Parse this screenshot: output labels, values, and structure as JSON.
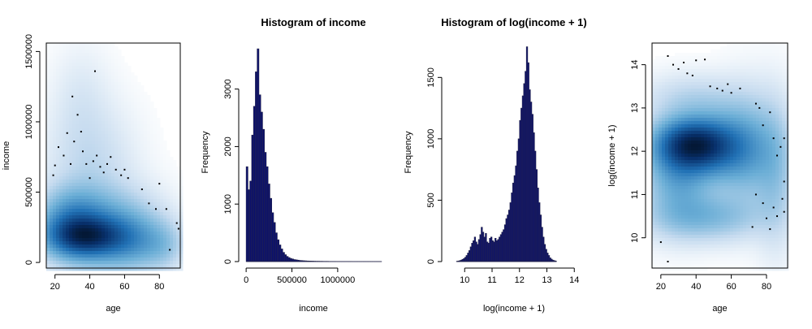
{
  "colors": {
    "density_scale": [
      "#ffffff",
      "#c6dbef",
      "#6baed6",
      "#2171b5",
      "#08306b",
      "#000000"
    ],
    "bar_fill": "#0a0f6e",
    "bar_border": "#26264a",
    "axis": "#000000"
  },
  "chart_data": [
    {
      "type": "heatmap",
      "subtype": "smoothScatter",
      "title": "",
      "xlabel": "age",
      "ylabel": "income",
      "xlim": [
        15,
        92
      ],
      "ylim": [
        -40000,
        1560000
      ],
      "x_ticks": [
        20,
        40,
        60,
        80
      ],
      "x_tick_labels": [
        "20",
        "40",
        "60",
        "80"
      ],
      "y_ticks": [
        0,
        500000,
        1000000,
        1500000
      ],
      "y_tick_labels": [
        "0",
        "500000",
        "1000000",
        "1500000"
      ],
      "framed": true,
      "density_blobs": [
        {
          "x": 38,
          "y": 185000,
          "sx": 14,
          "sy": 90000,
          "w": 1.0
        },
        {
          "x": 30,
          "y": 280000,
          "sx": 12,
          "sy": 150000,
          "w": 0.55
        },
        {
          "x": 50,
          "y": 230000,
          "sx": 18,
          "sy": 180000,
          "w": 0.45
        },
        {
          "x": 65,
          "y": 150000,
          "sx": 12,
          "sy": 120000,
          "w": 0.3
        },
        {
          "x": 82,
          "y": 120000,
          "sx": 8,
          "sy": 110000,
          "w": 0.18
        },
        {
          "x": 40,
          "y": 700000,
          "sx": 15,
          "sy": 260000,
          "w": 0.12
        },
        {
          "x": 35,
          "y": 1150000,
          "sx": 10,
          "sy": 220000,
          "w": 0.05
        }
      ],
      "points": [
        {
          "x": 19,
          "y": 620000
        },
        {
          "x": 20,
          "y": 690000
        },
        {
          "x": 22,
          "y": 820000
        },
        {
          "x": 25,
          "y": 760000
        },
        {
          "x": 27,
          "y": 920000
        },
        {
          "x": 29,
          "y": 700000
        },
        {
          "x": 30,
          "y": 1180000
        },
        {
          "x": 31,
          "y": 860000
        },
        {
          "x": 33,
          "y": 1050000
        },
        {
          "x": 35,
          "y": 930000
        },
        {
          "x": 36,
          "y": 790000
        },
        {
          "x": 38,
          "y": 700000
        },
        {
          "x": 40,
          "y": 600000
        },
        {
          "x": 42,
          "y": 720000
        },
        {
          "x": 44,
          "y": 760000
        },
        {
          "x": 46,
          "y": 680000
        },
        {
          "x": 48,
          "y": 640000
        },
        {
          "x": 50,
          "y": 700000
        },
        {
          "x": 52,
          "y": 750000
        },
        {
          "x": 55,
          "y": 660000
        },
        {
          "x": 58,
          "y": 620000
        },
        {
          "x": 60,
          "y": 660000
        },
        {
          "x": 62,
          "y": 600000
        },
        {
          "x": 70,
          "y": 520000
        },
        {
          "x": 74,
          "y": 420000
        },
        {
          "x": 78,
          "y": 380000
        },
        {
          "x": 80,
          "y": 560000
        },
        {
          "x": 84,
          "y": 380000
        },
        {
          "x": 86,
          "y": 90000
        },
        {
          "x": 90,
          "y": 280000
        },
        {
          "x": 91,
          "y": 240000
        },
        {
          "x": 43,
          "y": 1360000
        }
      ]
    },
    {
      "type": "bar",
      "subtype": "histogram",
      "title": "Histogram of income",
      "xlabel": "income",
      "ylabel": "Frequency",
      "xlim": [
        -10000,
        1480000
      ],
      "ylim": [
        0,
        3800
      ],
      "x_ticks": [
        0,
        500000,
        1000000
      ],
      "x_tick_labels": [
        "0",
        "500000",
        "1000000"
      ],
      "y_ticks": [
        0,
        1000,
        2000,
        3000
      ],
      "y_tick_labels": [
        "0",
        "1000",
        "2000",
        "3000"
      ],
      "bin_start": 0,
      "bin_width": 20000,
      "values": [
        1650,
        1250,
        1400,
        2200,
        2700,
        3300,
        3700,
        2900,
        2600,
        2300,
        1900,
        1650,
        1350,
        1100,
        850,
        680,
        500,
        380,
        290,
        220,
        160,
        120,
        90,
        70,
        55,
        45,
        35,
        30,
        25,
        20,
        18,
        15,
        13,
        11,
        10,
        9,
        8,
        7,
        6,
        6,
        5,
        5,
        4,
        4,
        4,
        3,
        3,
        3,
        3,
        2,
        2,
        2,
        2,
        2,
        2,
        2,
        2,
        2,
        1,
        1,
        1,
        1,
        1,
        1,
        1,
        1,
        1,
        1,
        1,
        1,
        1,
        1,
        1,
        1
      ]
    },
    {
      "type": "bar",
      "subtype": "histogram",
      "title": "Histogram of log(income + 1)",
      "xlabel": "log(income + 1)",
      "ylabel": "Frequency",
      "xlim": [
        9.4,
        14.2
      ],
      "ylim": [
        0,
        1780
      ],
      "x_ticks": [
        10,
        11,
        12,
        13,
        14
      ],
      "x_tick_labels": [
        "10",
        "11",
        "12",
        "13",
        "14"
      ],
      "y_ticks": [
        0,
        500,
        1000,
        1500
      ],
      "y_tick_labels": [
        "0",
        "500",
        "1000",
        "1500"
      ],
      "bin_start": 9.7,
      "bin_width": 0.05,
      "values": [
        3,
        5,
        8,
        12,
        18,
        25,
        35,
        50,
        70,
        90,
        120,
        150,
        170,
        200,
        160,
        140,
        180,
        220,
        280,
        240,
        200,
        230,
        160,
        150,
        190,
        200,
        170,
        160,
        190,
        170,
        180,
        200,
        220,
        240,
        260,
        300,
        350,
        380,
        420,
        480,
        560,
        640,
        700,
        780,
        900,
        1000,
        1150,
        1250,
        1350,
        1450,
        1550,
        1750,
        1620,
        1400,
        1300,
        1200,
        1050,
        900,
        750,
        600,
        480,
        380,
        280,
        200,
        140,
        100,
        70,
        50,
        30,
        20,
        12,
        8,
        5
      ]
    },
    {
      "type": "heatmap",
      "subtype": "smoothScatter",
      "title": "",
      "xlabel": "age",
      "ylabel": "log(income + 1)",
      "xlim": [
        15,
        92
      ],
      "ylim": [
        9.3,
        14.5
      ],
      "x_ticks": [
        20,
        40,
        60,
        80
      ],
      "x_tick_labels": [
        "20",
        "40",
        "60",
        "80"
      ],
      "y_ticks": [
        10,
        11,
        12,
        13,
        14
      ],
      "y_tick_labels": [
        "10",
        "11",
        "12",
        "13",
        "14"
      ],
      "framed": true,
      "density_blobs": [
        {
          "x": 38,
          "y": 12.15,
          "sx": 13,
          "sy": 0.35,
          "w": 1.0
        },
        {
          "x": 52,
          "y": 12.1,
          "sx": 15,
          "sy": 0.5,
          "w": 0.55
        },
        {
          "x": 30,
          "y": 11.6,
          "sx": 12,
          "sy": 0.7,
          "w": 0.45
        },
        {
          "x": 45,
          "y": 10.5,
          "sx": 20,
          "sy": 0.35,
          "w": 0.3
        },
        {
          "x": 70,
          "y": 12.0,
          "sx": 12,
          "sy": 0.8,
          "w": 0.3
        },
        {
          "x": 85,
          "y": 11.5,
          "sx": 7,
          "sy": 1.0,
          "w": 0.18
        },
        {
          "x": 40,
          "y": 13.2,
          "sx": 18,
          "sy": 0.35,
          "w": 0.12
        }
      ],
      "points": [
        {
          "x": 24,
          "y": 14.2
        },
        {
          "x": 27,
          "y": 14.0
        },
        {
          "x": 30,
          "y": 13.9
        },
        {
          "x": 33,
          "y": 14.05
        },
        {
          "x": 35,
          "y": 13.8
        },
        {
          "x": 38,
          "y": 13.75
        },
        {
          "x": 40,
          "y": 14.1
        },
        {
          "x": 45,
          "y": 14.12
        },
        {
          "x": 48,
          "y": 13.5
        },
        {
          "x": 52,
          "y": 13.45
        },
        {
          "x": 55,
          "y": 13.4
        },
        {
          "x": 58,
          "y": 13.55
        },
        {
          "x": 60,
          "y": 13.35
        },
        {
          "x": 65,
          "y": 13.45
        },
        {
          "x": 74,
          "y": 13.1
        },
        {
          "x": 76,
          "y": 13.0
        },
        {
          "x": 78,
          "y": 12.6
        },
        {
          "x": 82,
          "y": 12.9
        },
        {
          "x": 84,
          "y": 12.3
        },
        {
          "x": 86,
          "y": 11.9
        },
        {
          "x": 88,
          "y": 12.1
        },
        {
          "x": 90,
          "y": 12.3
        },
        {
          "x": 90,
          "y": 11.3
        },
        {
          "x": 89,
          "y": 10.9
        },
        {
          "x": 86,
          "y": 10.5
        },
        {
          "x": 84,
          "y": 10.7
        },
        {
          "x": 82,
          "y": 10.2
        },
        {
          "x": 80,
          "y": 10.45
        },
        {
          "x": 78,
          "y": 10.8
        },
        {
          "x": 74,
          "y": 11.0
        },
        {
          "x": 72,
          "y": 10.25
        },
        {
          "x": 20,
          "y": 9.9
        },
        {
          "x": 24,
          "y": 9.45
        },
        {
          "x": 90,
          "y": 10.6
        }
      ]
    }
  ]
}
